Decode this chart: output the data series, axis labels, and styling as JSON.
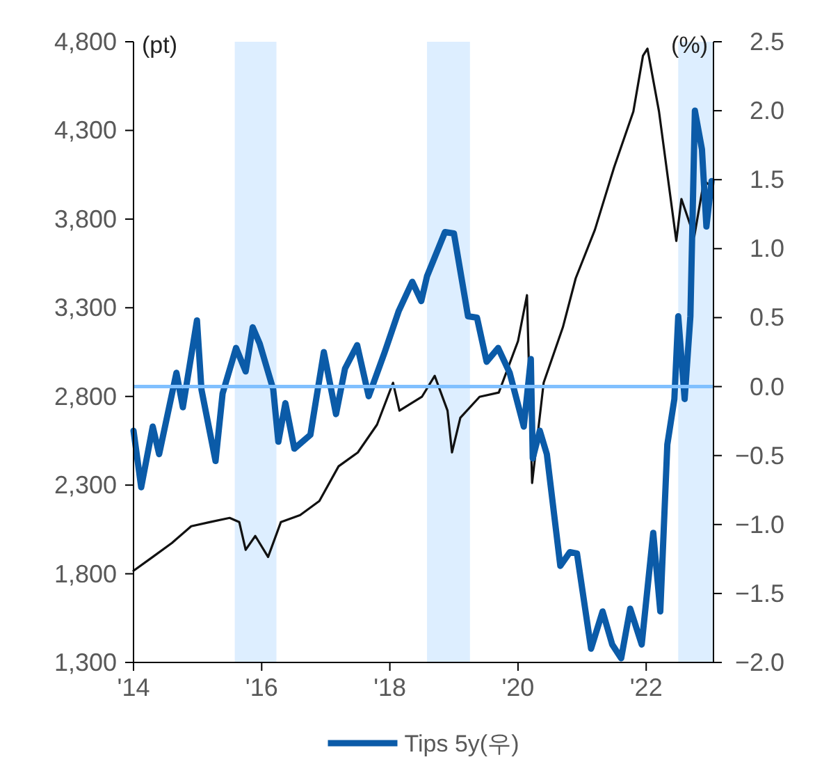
{
  "chart_data": {
    "type": "line",
    "ylabel": "(pt)",
    "y2label": "(%)",
    "xlim": [
      2014,
      2023.05
    ],
    "xticks": [
      {
        "value": 2014,
        "label": "'14"
      },
      {
        "value": 2016,
        "label": "'16"
      },
      {
        "value": 2018,
        "label": "'18"
      },
      {
        "value": 2020,
        "label": "'20"
      },
      {
        "value": 2022,
        "label": "'22"
      }
    ],
    "ylim": [
      1300,
      4800
    ],
    "yticks": [
      {
        "value": 1300,
        "label": "1,300"
      },
      {
        "value": 1800,
        "label": "1,800"
      },
      {
        "value": 2300,
        "label": "2,300"
      },
      {
        "value": 2800,
        "label": "2,800"
      },
      {
        "value": 3300,
        "label": "3,300"
      },
      {
        "value": 3800,
        "label": "3,800"
      },
      {
        "value": 4300,
        "label": "4,300"
      },
      {
        "value": 4800,
        "label": "4,800"
      }
    ],
    "y2lim": [
      -2.0,
      2.5
    ],
    "y2ticks": [
      {
        "value": -2.0,
        "label": "−2.0"
      },
      {
        "value": -1.5,
        "label": "−1.5"
      },
      {
        "value": -1.0,
        "label": "−1.0"
      },
      {
        "value": -0.5,
        "label": "−0.5"
      },
      {
        "value": 0.0,
        "label": "0.0"
      },
      {
        "value": 0.5,
        "label": "0.5"
      },
      {
        "value": 1.0,
        "label": "1.0"
      },
      {
        "value": 1.5,
        "label": "1.5"
      },
      {
        "value": 2.0,
        "label": "2.0"
      },
      {
        "value": 2.5,
        "label": "2.5"
      }
    ],
    "bands": [
      {
        "axis": "x",
        "from": 2015.58,
        "to": 2016.23,
        "color": "#ddeeff"
      },
      {
        "axis": "x",
        "from": 2018.58,
        "to": 2019.25,
        "color": "#ddeeff"
      },
      {
        "axis": "x",
        "from": 2022.5,
        "to": 2023.05,
        "color": "#ddeeff"
      }
    ],
    "ref_lines": [
      {
        "axis": "y2",
        "value": 0,
        "color": "#80c0ff"
      }
    ],
    "legend": "bottom",
    "series": [
      {
        "color": "#111111",
        "axis": "y",
        "x": [
          2014.0,
          2014.3,
          2014.6,
          2014.9,
          2015.2,
          2015.5,
          2015.65,
          2015.75,
          2015.9,
          2016.1,
          2016.3,
          2016.6,
          2016.9,
          2017.2,
          2017.5,
          2017.8,
          2018.05,
          2018.15,
          2018.5,
          2018.7,
          2018.9,
          2018.97,
          2019.1,
          2019.4,
          2019.7,
          2020.0,
          2020.14,
          2020.22,
          2020.4,
          2020.7,
          2020.9,
          2021.2,
          2021.5,
          2021.8,
          2021.95,
          2022.02,
          2022.2,
          2022.47,
          2022.55,
          2022.75,
          2022.9,
          2023.0
        ],
        "values": [
          1817,
          1895,
          1974,
          2068,
          2092,
          2115,
          2092,
          1935,
          2013,
          1895,
          2092,
          2131,
          2210,
          2406,
          2484,
          2641,
          2877,
          2720,
          2798,
          2916,
          2720,
          2484,
          2680,
          2798,
          2822,
          3112,
          3371,
          2312,
          2877,
          3190,
          3466,
          3740,
          4093,
          4407,
          4721,
          4761,
          4407,
          3677,
          3913,
          3701,
          4014,
          3991
        ]
      },
      {
        "name": "Tips 5y(우)",
        "color": "#0b5ba8",
        "axis": "y2",
        "x": [
          2014.0,
          2014.12,
          2014.3,
          2014.4,
          2014.67,
          2014.77,
          2014.99,
          2015.06,
          2015.28,
          2015.39,
          2015.6,
          2015.75,
          2015.86,
          2015.97,
          2016.18,
          2016.26,
          2016.37,
          2016.51,
          2016.76,
          2016.97,
          2017.16,
          2017.3,
          2017.49,
          2017.67,
          2017.92,
          2018.14,
          2018.35,
          2018.49,
          2018.58,
          2018.86,
          2019.0,
          2019.22,
          2019.36,
          2019.51,
          2019.69,
          2019.87,
          2020.09,
          2020.2,
          2020.23,
          2020.34,
          2020.45,
          2020.66,
          2020.81,
          2020.92,
          2021.14,
          2021.32,
          2021.47,
          2021.61,
          2021.75,
          2021.93,
          2022.11,
          2022.22,
          2022.33,
          2022.44,
          2022.5,
          2022.6,
          2022.69,
          2022.76,
          2022.87,
          2022.94,
          2023.02
        ],
        "values": [
          -0.32,
          -0.73,
          -0.29,
          -0.49,
          0.1,
          -0.15,
          0.48,
          -0.02,
          -0.54,
          -0.05,
          0.28,
          0.11,
          0.43,
          0.31,
          -0.02,
          -0.4,
          -0.12,
          -0.45,
          -0.35,
          0.25,
          -0.2,
          0.13,
          0.3,
          -0.07,
          0.25,
          0.55,
          0.76,
          0.62,
          0.8,
          1.12,
          1.11,
          0.51,
          0.5,
          0.18,
          0.28,
          0.1,
          -0.29,
          0.2,
          -0.52,
          -0.32,
          -0.49,
          -1.3,
          -1.2,
          -1.21,
          -1.9,
          -1.63,
          -1.87,
          -1.97,
          -1.61,
          -1.87,
          -1.06,
          -1.63,
          -0.42,
          -0.09,
          0.51,
          -0.09,
          0.51,
          2.0,
          1.72,
          1.16,
          1.49
        ]
      }
    ]
  }
}
